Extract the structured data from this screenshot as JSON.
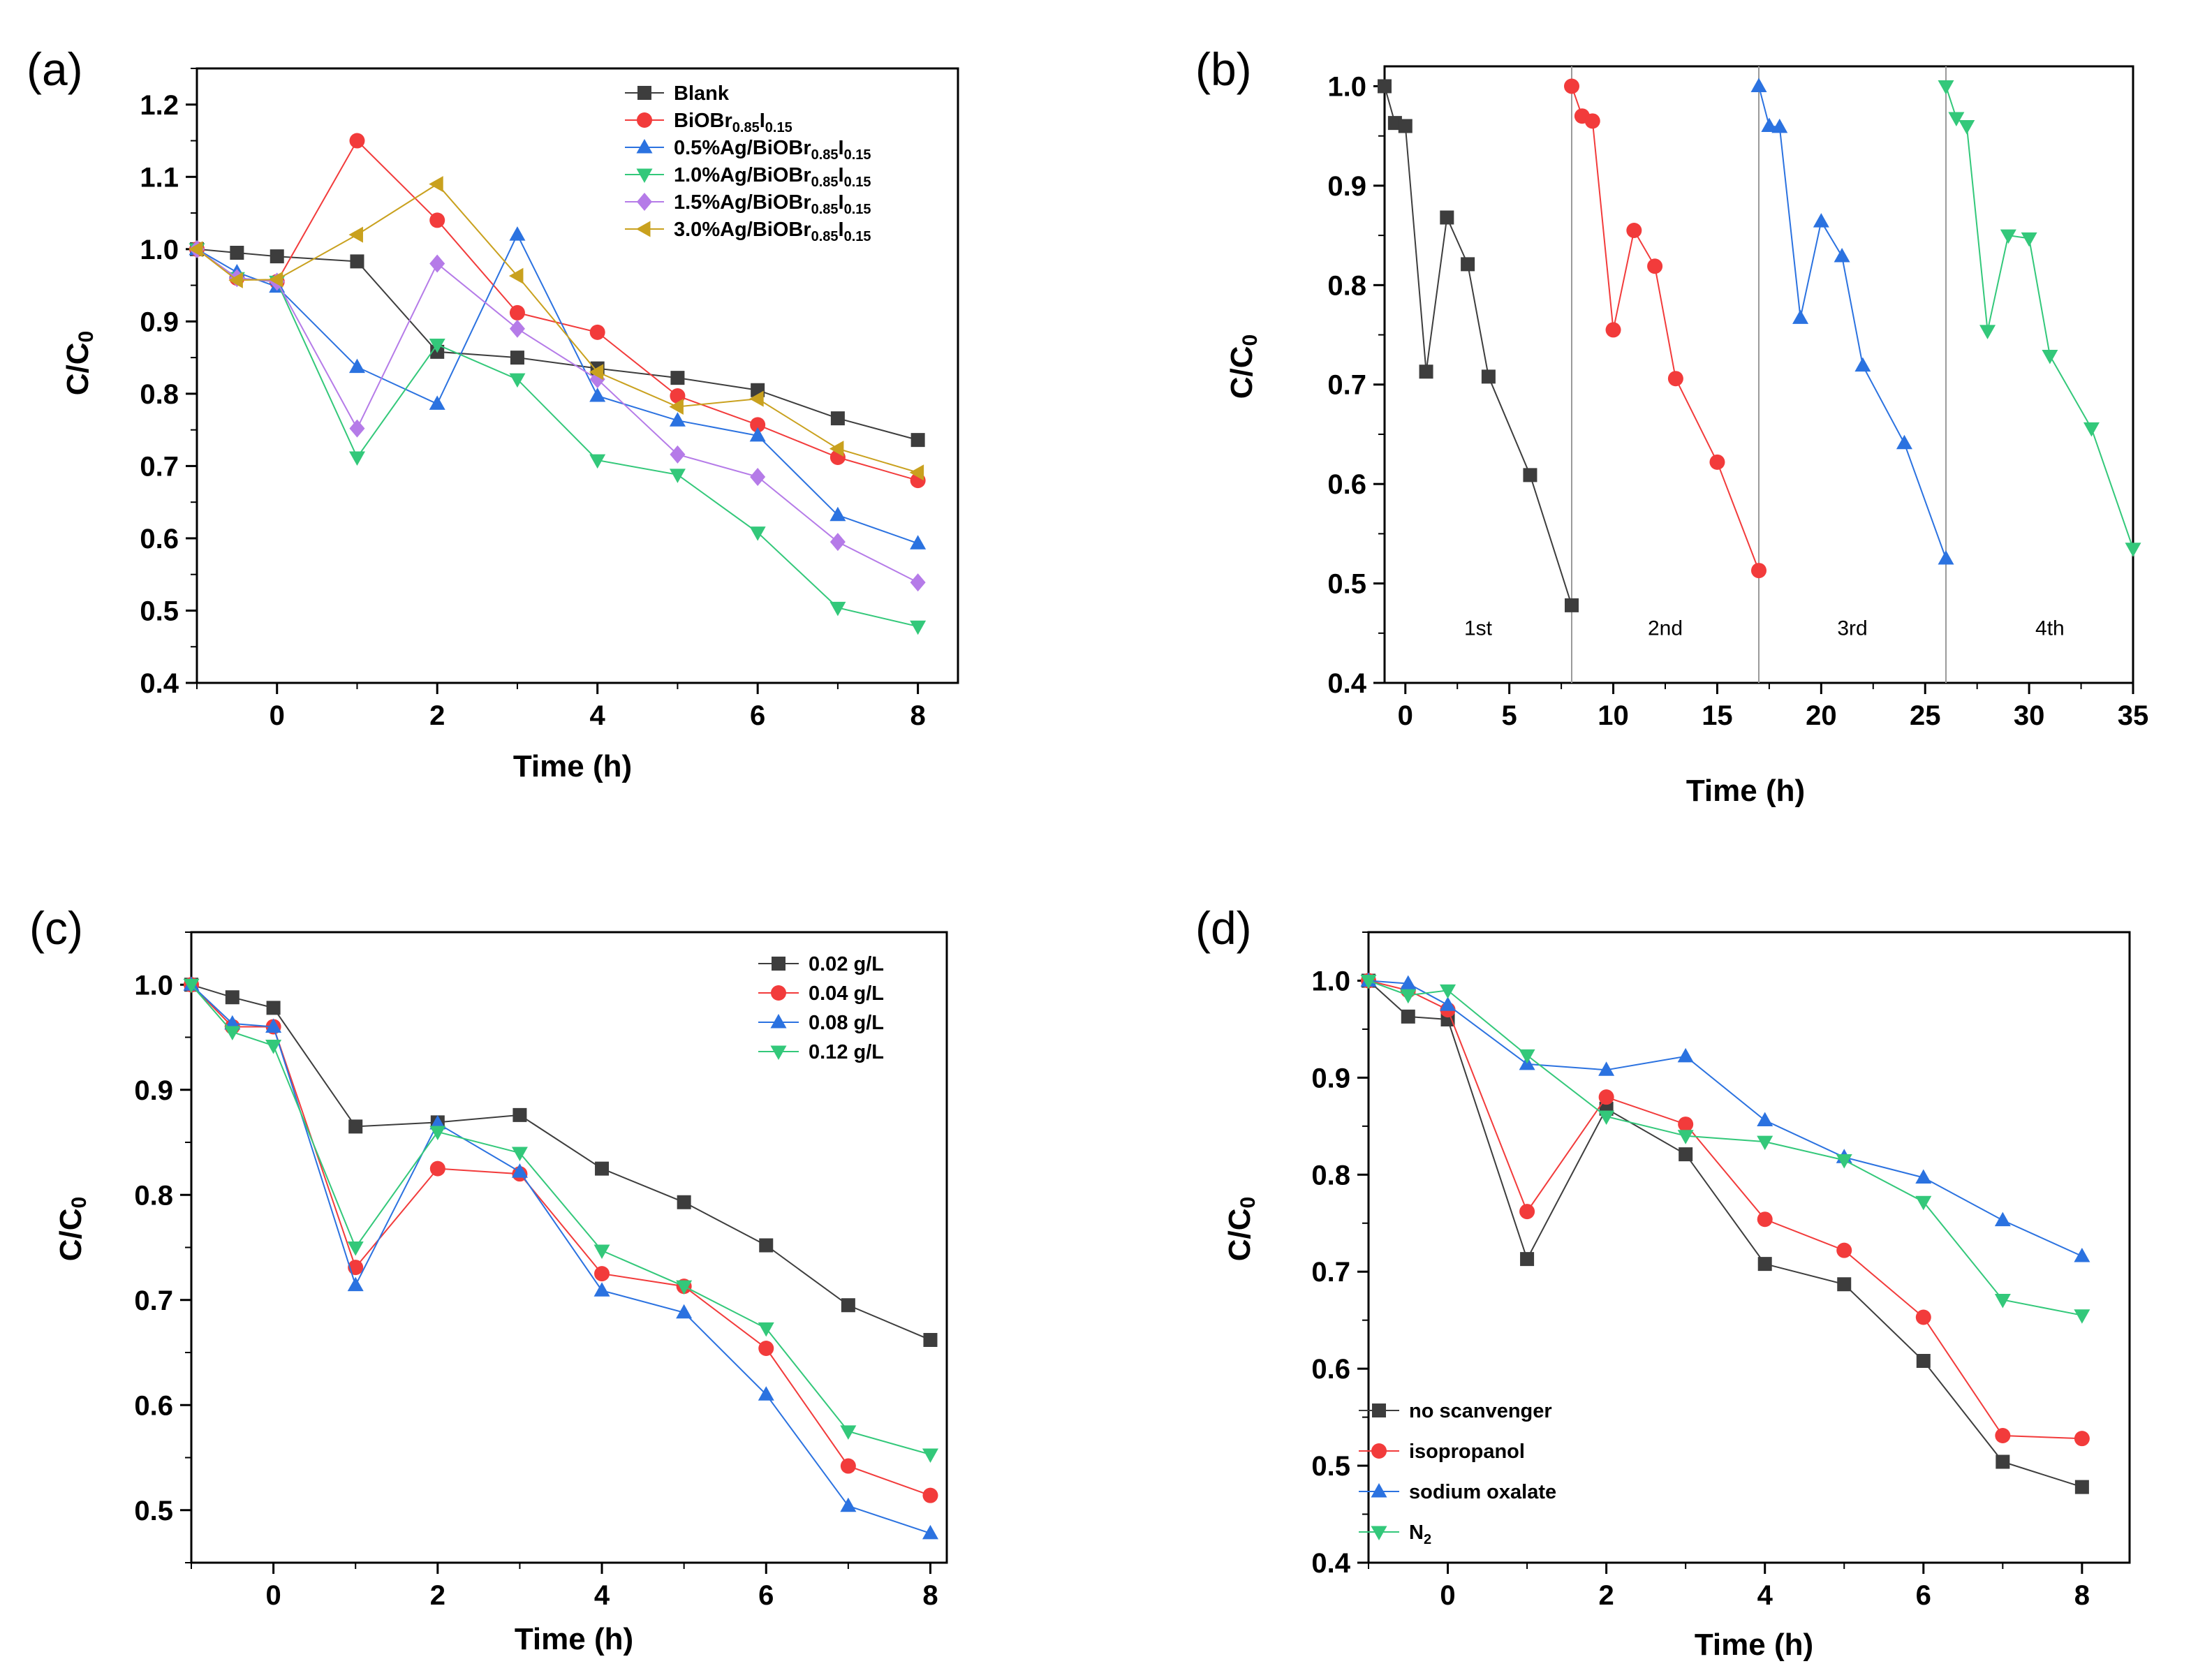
{
  "colors": {
    "black": "#3d3d3d",
    "red": "#f23b3b",
    "blue": "#2b72e0",
    "green": "#33c87a",
    "purple": "#b57be8",
    "gold": "#c9a11e"
  },
  "chart_data": [
    {
      "id": "a",
      "panel_label": "(a)",
      "type": "line",
      "xlabel": "Time (h)",
      "ylabel_main": "C/C",
      "ylabel_sub": "0",
      "xlim": [
        -1,
        8.5
      ],
      "ylim": [
        0.4,
        1.25
      ],
      "xticks": [
        0,
        2,
        4,
        6,
        8
      ],
      "xtick_labels": [
        "0",
        "2",
        "4",
        "6",
        "8"
      ],
      "yticks": [
        0.4,
        0.5,
        0.6,
        0.7,
        0.8,
        0.9,
        1.0,
        1.1,
        1.2
      ],
      "ytick_labels": [
        "0.4",
        "0.5",
        "0.6",
        "0.7",
        "0.8",
        "0.9",
        "1.0",
        "1.1",
        "1.2"
      ],
      "legend_position": "top-right",
      "x": [
        -1,
        -0.5,
        0,
        1,
        2,
        3,
        4,
        5,
        6,
        7,
        8
      ],
      "series": [
        {
          "name": "Blank",
          "legend": [
            [
              "Blank",
              ""
            ]
          ],
          "marker": "square",
          "color": "#3d3d3d",
          "values": [
            1.0,
            0.995,
            0.99,
            0.983,
            0.858,
            0.85,
            0.835,
            0.822,
            0.805,
            0.766,
            0.736
          ]
        },
        {
          "name": "BiOBr0.85I0.15",
          "legend": [
            [
              "BiOBr",
              ""
            ],
            [
              "0.85",
              "sub"
            ],
            [
              "I",
              ""
            ],
            [
              "0.15",
              "sub"
            ]
          ],
          "marker": "circle",
          "color": "#f23b3b",
          "values": [
            1.0,
            0.96,
            0.955,
            1.15,
            1.04,
            0.912,
            0.885,
            0.797,
            0.757,
            0.712,
            0.68
          ]
        },
        {
          "name": "0.5%Ag/BiOBr0.85I0.15",
          "legend": [
            [
              "0.5%Ag/BiOBr",
              ""
            ],
            [
              "0.85",
              "sub"
            ],
            [
              "I",
              ""
            ],
            [
              "0.15",
              "sub"
            ]
          ],
          "marker": "triangle-up",
          "color": "#2b72e0",
          "values": [
            1.0,
            0.968,
            0.948,
            0.837,
            0.786,
            1.02,
            0.797,
            0.763,
            0.742,
            0.632,
            0.593
          ]
        },
        {
          "name": "1.0%Ag/BiOBr0.85I0.15",
          "legend": [
            [
              "1.0%Ag/BiOBr",
              ""
            ],
            [
              "0.85",
              "sub"
            ],
            [
              "I",
              ""
            ],
            [
              "0.15",
              "sub"
            ]
          ],
          "marker": "triangle-down",
          "color": "#33c87a",
          "values": [
            1.0,
            0.96,
            0.955,
            0.712,
            0.868,
            0.82,
            0.708,
            0.688,
            0.608,
            0.504,
            0.478
          ]
        },
        {
          "name": "1.5%Ag/BiOBr0.85I0.15",
          "legend": [
            [
              "1.5%Ag/BiOBr",
              ""
            ],
            [
              "0.85",
              "sub"
            ],
            [
              "I",
              ""
            ],
            [
              "0.15",
              "sub"
            ]
          ],
          "marker": "diamond",
          "color": "#b57be8",
          "values": [
            1.0,
            0.96,
            0.955,
            0.752,
            0.98,
            0.89,
            0.82,
            0.716,
            0.685,
            0.595,
            0.539
          ]
        },
        {
          "name": "3.0%Ag/BiOBr0.85I0.15",
          "legend": [
            [
              "3.0%Ag/BiOBr",
              ""
            ],
            [
              "0.85",
              "sub"
            ],
            [
              "I",
              ""
            ],
            [
              "0.15",
              "sub"
            ]
          ],
          "marker": "triangle-left",
          "color": "#c9a11e",
          "values": [
            1.0,
            0.957,
            0.958,
            1.02,
            1.09,
            0.963,
            0.83,
            0.782,
            0.793,
            0.724,
            0.691
          ]
        }
      ]
    },
    {
      "id": "b",
      "panel_label": "(b)",
      "type": "line",
      "xlabel": "Time (h)",
      "ylabel_main": "C/C",
      "ylabel_sub": "0",
      "xlim": [
        -1,
        35
      ],
      "ylim": [
        0.4,
        1.02
      ],
      "xticks": [
        0,
        5,
        10,
        15,
        20,
        25,
        30,
        35
      ],
      "xtick_labels": [
        "0",
        "5",
        "10",
        "15",
        "20",
        "25",
        "30",
        "35"
      ],
      "yticks": [
        0.4,
        0.5,
        0.6,
        0.7,
        0.8,
        0.9,
        1.0
      ],
      "ytick_labels": [
        "0.4",
        "0.5",
        "0.6",
        "0.7",
        "0.8",
        "0.9",
        "1.0"
      ],
      "dividers": [
        8,
        17,
        26
      ],
      "cycle_labels": [
        {
          "text": "1st",
          "x": 3.5,
          "y": 0.448
        },
        {
          "text": "2nd",
          "x": 12.5,
          "y": 0.448
        },
        {
          "text": "3rd",
          "x": 21.5,
          "y": 0.448
        },
        {
          "text": "4th",
          "x": 31.0,
          "y": 0.448
        }
      ],
      "series": [
        {
          "name": "1st cycle",
          "marker": "square",
          "color": "#3d3d3d",
          "x": [
            -1,
            -0.5,
            0,
            1,
            2,
            3,
            4,
            6,
            8
          ],
          "values": [
            1.0,
            0.963,
            0.96,
            0.713,
            0.868,
            0.821,
            0.708,
            0.609,
            0.478
          ]
        },
        {
          "name": "2nd cycle",
          "marker": "circle",
          "color": "#f23b3b",
          "x": [
            8,
            8.5,
            9,
            10,
            11,
            12,
            13,
            15,
            17
          ],
          "values": [
            1.0,
            0.97,
            0.965,
            0.755,
            0.855,
            0.819,
            0.706,
            0.622,
            0.513
          ]
        },
        {
          "name": "3rd cycle",
          "marker": "triangle-up",
          "color": "#2b72e0",
          "x": [
            17,
            17.5,
            18,
            19,
            20,
            21,
            22,
            24,
            26
          ],
          "values": [
            1.0,
            0.96,
            0.959,
            0.767,
            0.864,
            0.829,
            0.719,
            0.641,
            0.525
          ]
        },
        {
          "name": "4th cycle",
          "marker": "triangle-down",
          "color": "#33c87a",
          "x": [
            26,
            26.5,
            27,
            28,
            29,
            30,
            31,
            33,
            35
          ],
          "values": [
            1.0,
            0.968,
            0.96,
            0.754,
            0.85,
            0.847,
            0.729,
            0.656,
            0.535
          ]
        }
      ]
    },
    {
      "id": "c",
      "panel_label": "(c)",
      "type": "line",
      "xlabel": "Time (h)",
      "ylabel_main": "C/C",
      "ylabel_sub": "0",
      "xlim": [
        -1,
        8.2
      ],
      "ylim": [
        0.45,
        1.05
      ],
      "xticks": [
        0,
        2,
        4,
        6,
        8
      ],
      "xtick_labels": [
        "0",
        "2",
        "4",
        "6",
        "8"
      ],
      "yticks": [
        0.5,
        0.6,
        0.7,
        0.8,
        0.9,
        1.0
      ],
      "ytick_labels": [
        "0.5",
        "0.6",
        "0.7",
        "0.8",
        "0.9",
        "1.0"
      ],
      "legend_position": "top-right",
      "x": [
        -1,
        -0.5,
        0,
        1,
        2,
        3,
        4,
        5,
        6,
        7,
        8
      ],
      "series": [
        {
          "name": "0.02 g/L",
          "legend": [
            [
              "0.02 g/L",
              ""
            ]
          ],
          "marker": "square",
          "color": "#3d3d3d",
          "values": [
            1.0,
            0.988,
            0.978,
            0.865,
            0.869,
            0.876,
            0.825,
            0.793,
            0.752,
            0.695,
            0.662
          ]
        },
        {
          "name": "0.04 g/L",
          "legend": [
            [
              "0.04 g/L",
              ""
            ]
          ],
          "marker": "circle",
          "color": "#f23b3b",
          "values": [
            1.0,
            0.96,
            0.96,
            0.731,
            0.825,
            0.82,
            0.725,
            0.713,
            0.654,
            0.542,
            0.514
          ]
        },
        {
          "name": "0.08 g/L",
          "legend": [
            [
              "0.08 g/L",
              ""
            ]
          ],
          "marker": "triangle-up",
          "color": "#2b72e0",
          "values": [
            1.0,
            0.963,
            0.96,
            0.714,
            0.868,
            0.822,
            0.709,
            0.688,
            0.61,
            0.504,
            0.478
          ]
        },
        {
          "name": "0.12 g/L",
          "legend": [
            [
              "0.12 g/L",
              ""
            ]
          ],
          "marker": "triangle-down",
          "color": "#33c87a",
          "values": [
            1.0,
            0.955,
            0.942,
            0.75,
            0.86,
            0.84,
            0.747,
            0.713,
            0.673,
            0.575,
            0.553
          ]
        }
      ]
    },
    {
      "id": "d",
      "panel_label": "(d)",
      "type": "line",
      "xlabel": "Time (h)",
      "ylabel_main": "C/C",
      "ylabel_sub": "0",
      "xlim": [
        -1,
        8.6
      ],
      "ylim": [
        0.4,
        1.05
      ],
      "xticks": [
        0,
        2,
        4,
        6,
        8
      ],
      "xtick_labels": [
        "0",
        "2",
        "4",
        "6",
        "8"
      ],
      "yticks": [
        0.4,
        0.5,
        0.6,
        0.7,
        0.8,
        0.9,
        1.0
      ],
      "ytick_labels": [
        "0.4",
        "0.5",
        "0.6",
        "0.7",
        "0.8",
        "0.9",
        "1.0"
      ],
      "legend_position": "bottom-left",
      "x": [
        -1,
        -0.5,
        0,
        1,
        2,
        3,
        4,
        5,
        6,
        7,
        8
      ],
      "series": [
        {
          "name": "no scanvenger",
          "legend": [
            [
              "no scanvenger",
              ""
            ]
          ],
          "marker": "square",
          "color": "#3d3d3d",
          "values": [
            1.0,
            0.963,
            0.96,
            0.713,
            0.868,
            0.821,
            0.708,
            0.687,
            0.608,
            0.504,
            0.478
          ]
        },
        {
          "name": "isopropanol",
          "legend": [
            [
              "isopropanol",
              ""
            ]
          ],
          "marker": "circle",
          "color": "#f23b3b",
          "values": [
            1.0,
            0.99,
            0.97,
            0.762,
            0.88,
            0.852,
            0.754,
            0.722,
            0.653,
            0.531,
            0.528
          ]
        },
        {
          "name": "sodium oxalate",
          "legend": [
            [
              "sodium oxalate",
              ""
            ]
          ],
          "marker": "triangle-up",
          "color": "#2b72e0",
          "values": [
            1.0,
            0.997,
            0.975,
            0.914,
            0.908,
            0.922,
            0.856,
            0.818,
            0.797,
            0.753,
            0.716
          ]
        },
        {
          "name": "N2",
          "legend": [
            [
              "N",
              ""
            ],
            [
              "2",
              "sub"
            ]
          ],
          "marker": "triangle-down",
          "color": "#33c87a",
          "values": [
            1.0,
            0.985,
            0.99,
            0.923,
            0.86,
            0.84,
            0.834,
            0.815,
            0.772,
            0.671,
            0.655
          ]
        }
      ]
    }
  ]
}
